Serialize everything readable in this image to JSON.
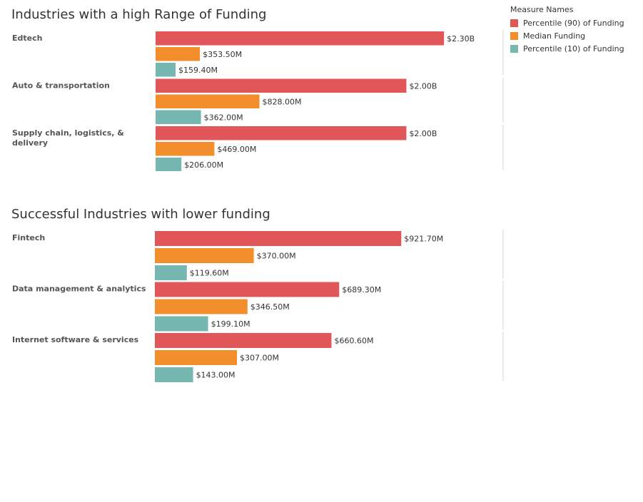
{
  "legend": {
    "title": "Measure Names",
    "items": [
      {
        "label": "Percentile (90) of Funding",
        "color": "#e15759"
      },
      {
        "label": "Median Funding",
        "color": "#f28e2b"
      },
      {
        "label": "Percentile (10) of Funding",
        "color": "#76b7b2"
      }
    ]
  },
  "chart_data": [
    {
      "type": "bar",
      "orientation": "horizontal",
      "title": "Industries with a high Range of Funding",
      "unit": "$M",
      "categories": [
        [
          "Edtech"
        ],
        [
          "Auto & transportation"
        ],
        [
          "Supply chain, logistics, &",
          "delivery"
        ]
      ],
      "series": [
        {
          "name": "Percentile (90) of Funding",
          "color": "#e15759",
          "values": [
            2300,
            2000,
            2000
          ],
          "labels": [
            "$2.30B",
            "$2.00B",
            "$2.00B"
          ]
        },
        {
          "name": "Median Funding",
          "color": "#f28e2b",
          "values": [
            353.5,
            828,
            469
          ],
          "labels": [
            "$353.50M",
            "$828.00M",
            "$469.00M"
          ]
        },
        {
          "name": "Percentile (10) of Funding",
          "color": "#76b7b2",
          "values": [
            159.4,
            362,
            206
          ],
          "labels": [
            "$159.40M",
            "$362.00M",
            "$206.00M"
          ]
        }
      ],
      "xlim": [
        0,
        2760
      ]
    },
    {
      "type": "bar",
      "orientation": "horizontal",
      "title": "Successful Industries with lower funding",
      "unit": "$M",
      "categories": [
        [
          "Fintech"
        ],
        [
          "Data management & analytics"
        ],
        [
          "Internet software & services"
        ]
      ],
      "series": [
        {
          "name": "Percentile (90) of Funding",
          "color": "#e15759",
          "values": [
            921.7,
            689.3,
            660.6
          ],
          "labels": [
            "$921.70M",
            "$689.30M",
            "$660.60M"
          ]
        },
        {
          "name": "Median Funding",
          "color": "#f28e2b",
          "values": [
            370,
            346.5,
            307
          ],
          "labels": [
            "$370.00M",
            "$346.50M",
            "$307.00M"
          ]
        },
        {
          "name": "Percentile (10) of Funding",
          "color": "#76b7b2",
          "values": [
            119.6,
            199.1,
            143
          ],
          "labels": [
            "$119.60M",
            "$199.10M",
            "$143.00M"
          ]
        }
      ],
      "xlim": [
        0,
        1300
      ]
    }
  ]
}
